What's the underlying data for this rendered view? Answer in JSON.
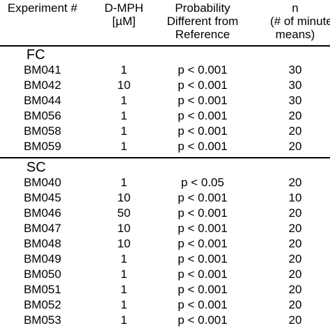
{
  "headers": {
    "experiment": [
      "Experiment #"
    ],
    "concentration": [
      "D-MPH",
      "[µM]"
    ],
    "probability": [
      "Probability",
      "Different from",
      "Reference"
    ],
    "n": [
      "n",
      "(# of minute",
      "means)"
    ]
  },
  "groups": [
    {
      "label": "FC",
      "rows": [
        {
          "exp": "BM041",
          "conc": "1",
          "prob": "p < 0.001",
          "n": "30"
        },
        {
          "exp": "BM042",
          "conc": "10",
          "prob": "p < 0.001",
          "n": "30"
        },
        {
          "exp": "BM044",
          "conc": "1",
          "prob": "p < 0.001",
          "n": "30"
        },
        {
          "exp": "BM056",
          "conc": "1",
          "prob": "p < 0.001",
          "n": "20"
        },
        {
          "exp": "BM058",
          "conc": "1",
          "prob": "p < 0.001",
          "n": "20"
        },
        {
          "exp": "BM059",
          "conc": "1",
          "prob": "p < 0.001",
          "n": "20"
        }
      ]
    },
    {
      "label": "SC",
      "rows": [
        {
          "exp": "BM040",
          "conc": "1",
          "prob": "p < 0.05",
          "n": "20"
        },
        {
          "exp": "BM045",
          "conc": "10",
          "prob": "p < 0.001",
          "n": "10"
        },
        {
          "exp": "BM046",
          "conc": "50",
          "prob": "p < 0.001",
          "n": "20"
        },
        {
          "exp": "BM047",
          "conc": "10",
          "prob": "p < 0.001",
          "n": "20"
        },
        {
          "exp": "BM048",
          "conc": "10",
          "prob": "p < 0.001",
          "n": "20"
        },
        {
          "exp": "BM049",
          "conc": "1",
          "prob": "p < 0.001",
          "n": "20"
        },
        {
          "exp": "BM050",
          "conc": "1",
          "prob": "p < 0.001",
          "n": "20"
        },
        {
          "exp": "BM051",
          "conc": "1",
          "prob": "p < 0.001",
          "n": "20"
        },
        {
          "exp": "BM052",
          "conc": "1",
          "prob": "p < 0.001",
          "n": "20"
        },
        {
          "exp": "BM053",
          "conc": "1",
          "prob": "p < 0.001",
          "n": "20"
        }
      ]
    }
  ]
}
